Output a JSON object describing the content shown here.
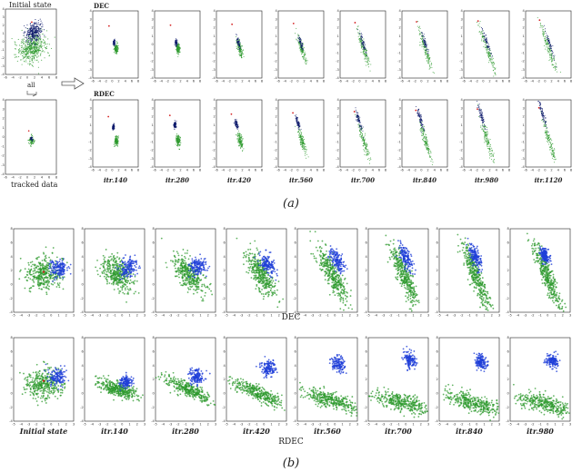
{
  "chart_data": {
    "type": "scatter",
    "panel_a": {
      "initial_label": "Initial state",
      "all_label": "all",
      "tracked_label": "tracked data",
      "row_labels": [
        "DEC",
        "RDEC"
      ],
      "iterations": [
        "itr.140",
        "itr.280",
        "itr.420",
        "itr.560",
        "itr.700",
        "itr.840",
        "itr.980",
        "itr.1120"
      ],
      "caption": "(a)",
      "x_ticks": [
        "-6",
        "-4",
        "-2",
        "0",
        "2",
        "4",
        "6",
        "8"
      ],
      "y_ticks": [
        "4",
        "3",
        "2",
        "1",
        "0",
        "-1",
        "-2",
        "-3",
        "-4"
      ],
      "xlim": [
        -6,
        8
      ],
      "ylim": [
        -4,
        4
      ]
    },
    "panel_b": {
      "iterations": [
        "Initial state",
        "itr.140",
        "itr.280",
        "itr.420",
        "itr.560",
        "itr.700",
        "itr.840",
        "itr.980"
      ],
      "row_labels": [
        "DEC",
        "RDEC"
      ],
      "caption": "(b)",
      "x_ticks": [
        "-5",
        "-4",
        "-3",
        "-2",
        "-1",
        "0",
        "1",
        "2",
        "3"
      ],
      "y_ticks": [
        "8",
        "6",
        "4",
        "2",
        "0",
        "-2",
        "-4"
      ],
      "xlim": [
        -5,
        3
      ],
      "ylim": [
        -4,
        8
      ]
    },
    "series_colors": {
      "cluster_1": "#1f3fd8",
      "cluster_2": "#2e9a2e",
      "cluster_1_dark": "#0d1a6b",
      "centroid": "#d42020"
    }
  }
}
